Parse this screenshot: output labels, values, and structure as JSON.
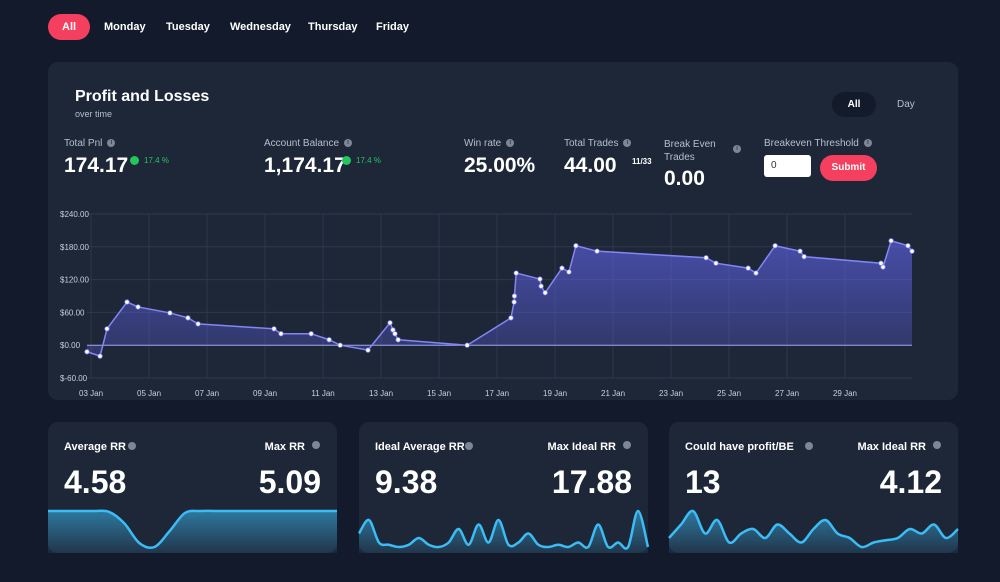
{
  "tabs": [
    "All",
    "Monday",
    "Tuesday",
    "Wednesday",
    "Thursday",
    "Friday"
  ],
  "panel": {
    "title": "Profit and Losses",
    "subtitle": "over time",
    "toggle": [
      "All",
      "Day"
    ],
    "stats": [
      {
        "label": "Total Pnl",
        "value": "174.17",
        "change": "17.4 %"
      },
      {
        "label": "Account Balance",
        "value": "1,174.17",
        "change": "17.4 %"
      },
      {
        "label": "Win rate",
        "value": "25.00%"
      },
      {
        "label": "Total Trades",
        "value": "44.00",
        "note": "11/33"
      },
      {
        "label": "Break Even Trades",
        "value": "0.00"
      }
    ],
    "threshold": {
      "label": "Breakeven Threshold",
      "input": "0",
      "button": "Submit"
    }
  },
  "chart_data": {
    "type": "line",
    "x": [
      2.86,
      3.31,
      3.55,
      4.24,
      4.62,
      5.72,
      6.34,
      6.69,
      9.31,
      9.55,
      10.59,
      11.21,
      11.59,
      12.55,
      13.31,
      13.41,
      13.48,
      13.59,
      15.97,
      17.48,
      17.59,
      17.6,
      17.66,
      18.48,
      18.52,
      18.66,
      19.24,
      19.48,
      19.72,
      20.45,
      24.21,
      24.55,
      25.66,
      25.93,
      26.59,
      27.45,
      27.59,
      30.24,
      30.31,
      30.59,
      31.17,
      31.31
    ],
    "series": [
      {
        "color": "#8486f5",
        "values": [
          -12,
          -20,
          30,
          79,
          70,
          59,
          50,
          39,
          30,
          21,
          21,
          10,
          0,
          -9,
          41,
          28,
          21,
          10,
          0,
          50,
          79,
          90,
          132,
          121,
          108,
          96,
          141,
          134,
          182,
          172,
          160,
          150,
          141,
          132,
          182,
          172,
          162,
          150,
          143,
          191,
          182,
          172
        ]
      }
    ],
    "xlim": [
      2.86,
      31.31
    ],
    "ylim": [
      -60,
      240
    ],
    "xticks": [
      {
        "value": 3,
        "label": "03 Jan"
      },
      {
        "value": 5,
        "label": "05 Jan"
      },
      {
        "value": 7,
        "label": "07 Jan"
      },
      {
        "value": 9,
        "label": "09 Jan"
      },
      {
        "value": 11,
        "label": "11 Jan"
      },
      {
        "value": 13,
        "label": "13 Jan"
      },
      {
        "value": 15,
        "label": "15 Jan"
      },
      {
        "value": 17,
        "label": "17 Jan"
      },
      {
        "value": 19,
        "label": "19 Jan"
      },
      {
        "value": 21,
        "label": "21 Jan"
      },
      {
        "value": 23,
        "label": "23 Jan"
      },
      {
        "value": 25,
        "label": "25 Jan"
      },
      {
        "value": 27,
        "label": "27 Jan"
      },
      {
        "value": 29,
        "label": "29 Jan"
      }
    ],
    "yticks": [
      {
        "value": -60,
        "label": "$-60.00"
      },
      {
        "value": 0,
        "label": "$0.00"
      },
      {
        "value": 60,
        "label": "$60.00"
      },
      {
        "value": 120,
        "label": "$120.00"
      },
      {
        "value": 180,
        "label": "$180.00"
      },
      {
        "value": 240,
        "label": "$240.00"
      }
    ],
    "grid": true
  },
  "cards": [
    {
      "left_label": "Average RR",
      "left_value": "4.58",
      "right_label": "Max RR",
      "right_value": "5.09",
      "color": "#3bbcf5",
      "sparkline": [
        9,
        9,
        9,
        9,
        8.8,
        6,
        1,
        0,
        4,
        8.5,
        9,
        9,
        9,
        9,
        9,
        9,
        9,
        9,
        9,
        9
      ]
    },
    {
      "left_label": "Ideal Average RR",
      "left_value": "9.38",
      "right_label": "Max Ideal RR",
      "right_value": "17.88",
      "color": "#3bbcf5",
      "sparkline": [
        3,
        6,
        1,
        0.5,
        0,
        0.5,
        2,
        0.5,
        0,
        1,
        4,
        0.5,
        5,
        1,
        6,
        0.5,
        1,
        3,
        0.5,
        0,
        0.5,
        0,
        1,
        0,
        5,
        0,
        1,
        0,
        8,
        0
      ]
    },
    {
      "left_label": "Could have profit/BE",
      "left_value": "13",
      "right_label": "Max Ideal RR",
      "right_value": "4.12",
      "color": "#3bbcf5",
      "sparkline": [
        2,
        5,
        8,
        3,
        6,
        1,
        3,
        4,
        2,
        5,
        3,
        1,
        4,
        6,
        3,
        2,
        0,
        1,
        1.5,
        2,
        4,
        3,
        5,
        2,
        4
      ]
    }
  ]
}
